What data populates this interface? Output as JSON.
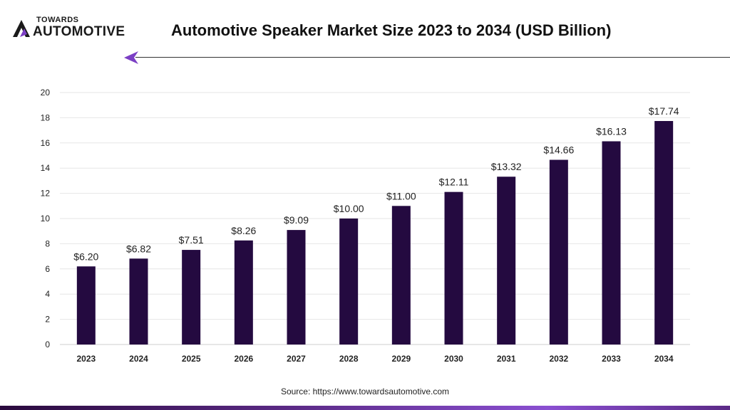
{
  "logo": {
    "top": "TOWARDS",
    "bottom": "AUTOMOTIVE"
  },
  "title": "Automotive Speaker Market Size 2023 to 2034 (USD Billion)",
  "source": "Source: https://www.towardsautomotive.com",
  "colors": {
    "bar": "#240a40",
    "accent": "#7b3fc4",
    "grid": "#e6e6e6"
  },
  "chart_data": {
    "type": "bar",
    "title": "Automotive Speaker Market Size 2023 to 2034 (USD Billion)",
    "xlabel": "",
    "ylabel": "",
    "categories": [
      "2023",
      "2024",
      "2025",
      "2026",
      "2027",
      "2028",
      "2029",
      "2030",
      "2031",
      "2032",
      "2033",
      "2034"
    ],
    "values": [
      6.2,
      6.82,
      7.51,
      8.26,
      9.09,
      10.0,
      11.0,
      12.11,
      13.32,
      14.66,
      16.13,
      17.74
    ],
    "data_labels": [
      "$6.20",
      "$6.82",
      "$7.51",
      "$8.26",
      "$9.09",
      "$10.00",
      "$11.00",
      "$12.11",
      "$13.32",
      "$14.66",
      "$16.13",
      "$17.74"
    ],
    "yticks": [
      0,
      2,
      4,
      6,
      8,
      10,
      12,
      14,
      16,
      18,
      20
    ],
    "ylim": [
      0,
      20
    ],
    "grid": true
  }
}
